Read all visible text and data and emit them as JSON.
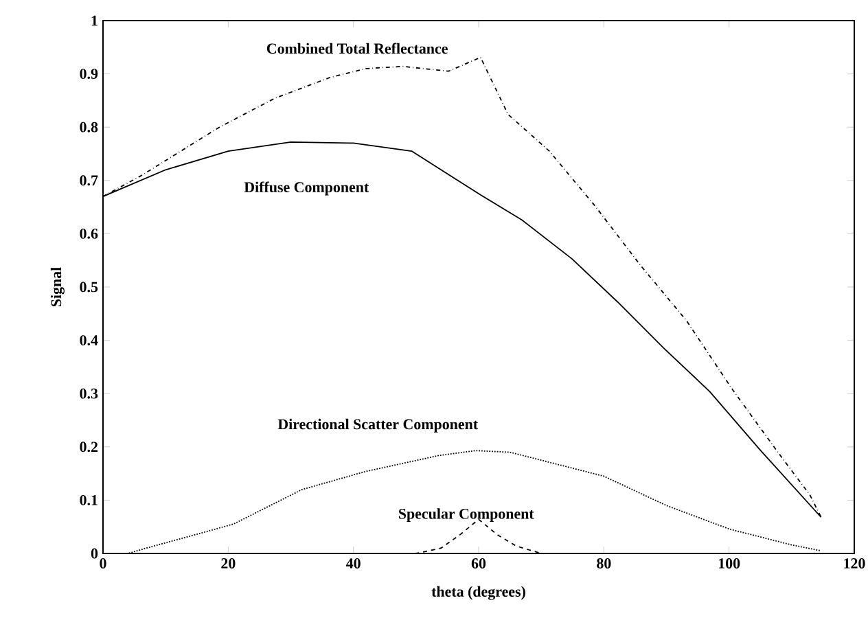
{
  "chart_data": {
    "type": "line",
    "xlabel": "theta (degrees)",
    "ylabel": "Signal",
    "xlim": [
      0,
      120
    ],
    "ylim": [
      0,
      1
    ],
    "xticks": [
      0,
      20,
      40,
      60,
      80,
      100,
      120
    ],
    "yticks": [
      0,
      0.1,
      0.2,
      0.3,
      0.4,
      0.5,
      0.6,
      0.7,
      0.8,
      0.9,
      1
    ],
    "grid": false,
    "legend": false,
    "series": [
      {
        "name": "Combined Total Reflectance",
        "color": "#000000",
        "line_style": "dashdot",
        "x": [
          0,
          6.1,
          18.6,
          27.4,
          36.2,
          42,
          47.9,
          55.2,
          60.3,
          64.7,
          71.3,
          78.6,
          85.9,
          93.2,
          100.4,
          107.8,
          112.9,
          114.7
        ],
        "values": [
          0.67,
          0.709,
          0.8,
          0.854,
          0.893,
          0.91,
          0.914,
          0.905,
          0.931,
          0.824,
          0.755,
          0.652,
          0.54,
          0.437,
          0.31,
          0.19,
          0.11,
          0.068
        ]
      },
      {
        "name": "Diffuse Component",
        "color": "#000000",
        "line_style": "solid",
        "x": [
          0,
          10,
          20,
          30,
          40,
          49.3,
          60.3,
          66.9,
          74.9,
          82.2,
          89.5,
          96.9,
          104.9,
          114.7
        ],
        "values": [
          0.67,
          0.72,
          0.755,
          0.772,
          0.77,
          0.755,
          0.673,
          0.626,
          0.553,
          0.472,
          0.386,
          0.304,
          0.195,
          0.068
        ]
      },
      {
        "name": "Directional Scatter Component",
        "color": "#000000",
        "line_style": "dotted",
        "x": [
          0,
          4,
          6.9,
          20.8,
          31.8,
          42,
          53.7,
          59.6,
          65,
          70,
          80,
          90,
          100,
          110,
          114.7
        ],
        "values": [
          0,
          0,
          0.01,
          0.055,
          0.12,
          0.154,
          0.184,
          0.193,
          0.19,
          0.175,
          0.145,
          0.09,
          0.046,
          0.016,
          0.005
        ]
      },
      {
        "name": "Specular Component",
        "color": "#000000",
        "line_style": "dashed",
        "x": [
          0,
          50,
          54,
          57,
          60,
          63,
          66,
          70,
          114.7
        ],
        "values": [
          0,
          0,
          0.01,
          0.035,
          0.064,
          0.035,
          0.014,
          0,
          0
        ]
      }
    ]
  }
}
